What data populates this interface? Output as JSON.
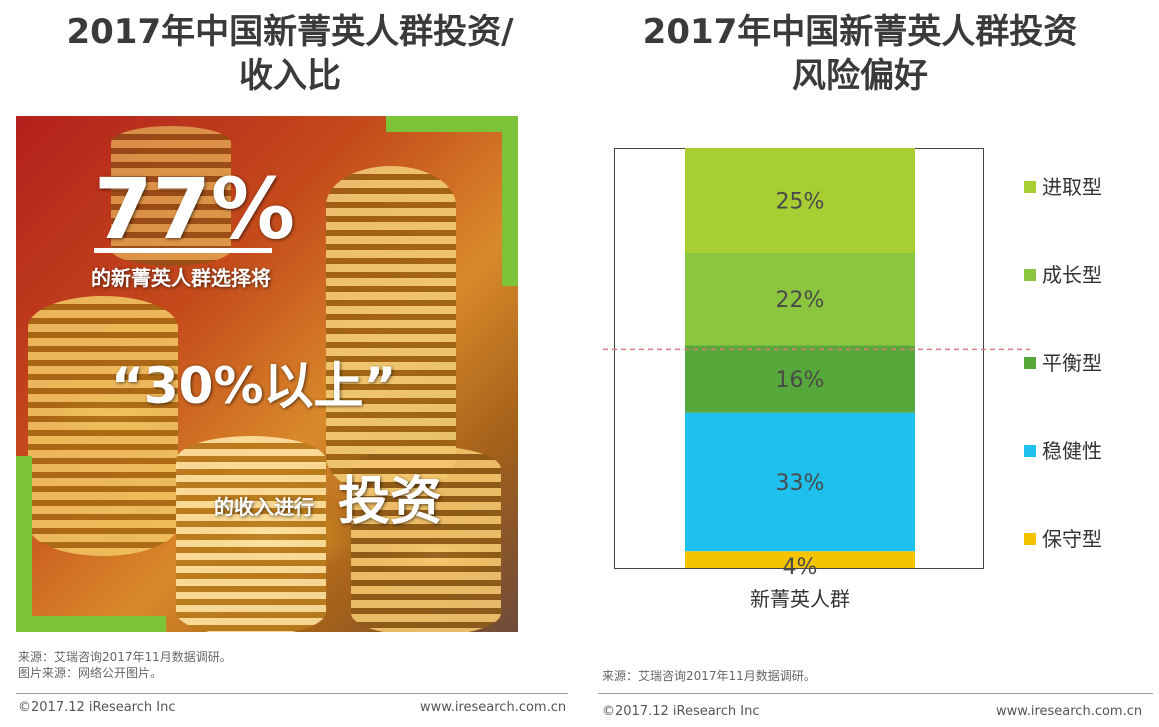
{
  "left": {
    "title_line1": "2017年中国新菁英人群投资/",
    "title_line2": "收入比",
    "big_pct": "77%",
    "line1": "的新菁英人群选择将",
    "quote": "“30%以上”",
    "line3_small": "的收入进行",
    "line3_big": "投资",
    "source1": "来源：艾瑞咨询2017年11月数据调研。",
    "source2": "图片来源：网络公开图片。",
    "footer_left": "©2017.12 iResearch Inc",
    "footer_right": "www.iresearch.com.cn"
  },
  "right": {
    "title_line1": "2017年中国新菁英人群投资",
    "title_line2": "风险偏好",
    "source": "来源：艾瑞咨询2017年11月数据调研。",
    "footer_left": "©2017.12 iResearch Inc",
    "footer_right": "www.iresearch.com.cn"
  },
  "chart_data": {
    "type": "bar",
    "stacked": true,
    "categories": [
      "新菁英人群"
    ],
    "series": [
      {
        "name": "保守型",
        "values": [
          4
        ],
        "color": "#f5c400"
      },
      {
        "name": "稳健性",
        "values": [
          33
        ],
        "color": "#1ec0ee"
      },
      {
        "name": "平衡型",
        "values": [
          16
        ],
        "color": "#56a83a"
      },
      {
        "name": "成长型",
        "values": [
          22
        ],
        "color": "#8cc63f"
      },
      {
        "name": "进取型",
        "values": [
          25
        ],
        "color": "#a7cf33"
      }
    ],
    "value_labels": [
      "4%",
      "33%",
      "16%",
      "22%",
      "25%"
    ],
    "legend_order": [
      "进取型",
      "成长型",
      "平衡型",
      "稳健性",
      "保守型"
    ],
    "legend_position": "right",
    "ylim": [
      0,
      100
    ],
    "reference_line": {
      "style": "dashed",
      "color": "#e07a7a"
    }
  }
}
